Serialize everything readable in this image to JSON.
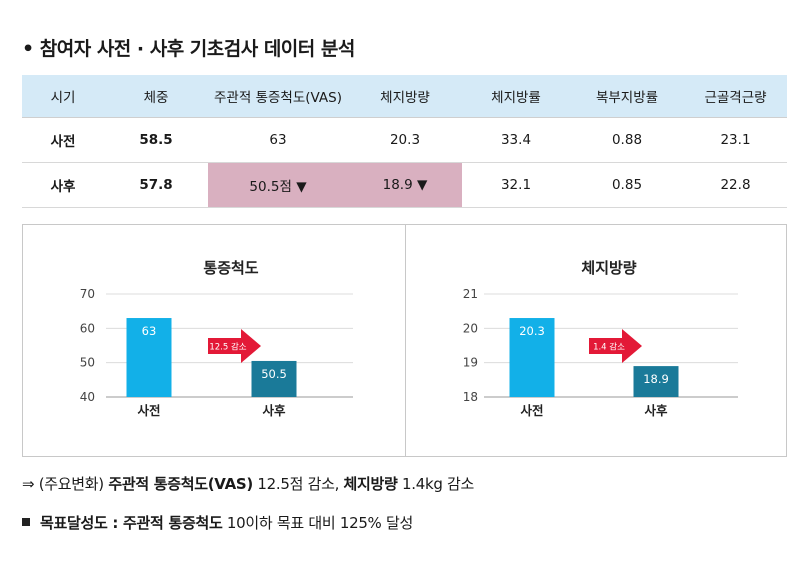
{
  "title": "• 참여자 사전 · 사후 기초검사 데이터 분석",
  "table": {
    "headers": [
      "시기",
      "체중",
      "주관적 통증척도(VAS)",
      "체지방량",
      "체지방률",
      "복부지방률",
      "근골격근량"
    ],
    "rows": [
      [
        "사전",
        "58.5",
        "63",
        "20.3",
        "33.4",
        "0.88",
        "23.1"
      ],
      [
        "사후",
        "57.8",
        "50.5점 ▼",
        "18.9 ▼",
        "32.1",
        "0.85",
        "22.8"
      ]
    ]
  },
  "chart_data": [
    {
      "type": "bar",
      "title": "통증척도",
      "categories": [
        "사전",
        "사후"
      ],
      "values": [
        63,
        50.5
      ],
      "value_labels": [
        "63",
        "50.5"
      ],
      "ylim": [
        40,
        70
      ],
      "yticks": [
        40,
        50,
        60,
        70
      ],
      "annotation": "12.5 감소",
      "grid": true,
      "colors": [
        "#12b0e8",
        "#1a7a99"
      ]
    },
    {
      "type": "bar",
      "title": "체지방량",
      "categories": [
        "사전",
        "사후"
      ],
      "values": [
        20.3,
        18.9
      ],
      "value_labels": [
        "20.3",
        "18.9"
      ],
      "ylim": [
        18,
        21
      ],
      "yticks": [
        18,
        19,
        20,
        21
      ],
      "annotation": "1.4 감소",
      "grid": true,
      "colors": [
        "#12b0e8",
        "#1a7a99"
      ]
    }
  ],
  "notes": {
    "line1_prefix": "⇒ (주요변화) ",
    "line1_bold1": "주관적 통증척도(VAS)",
    "line1_mid": " 12.5점 감소,  ",
    "line1_bold2": "체지방량",
    "line1_end": " 1.4kg 감소",
    "line2_bold": "목표달성도 : 주관적 통증척도",
    "line2_rest": " 10이하 목표 대비 125% 달성"
  },
  "colors": {
    "header_bg": "#d5eaf7",
    "highlight": "#d9b0c0",
    "bar_pre": "#12b0e8",
    "bar_post": "#1a7a99",
    "arrow": "#e31937"
  }
}
